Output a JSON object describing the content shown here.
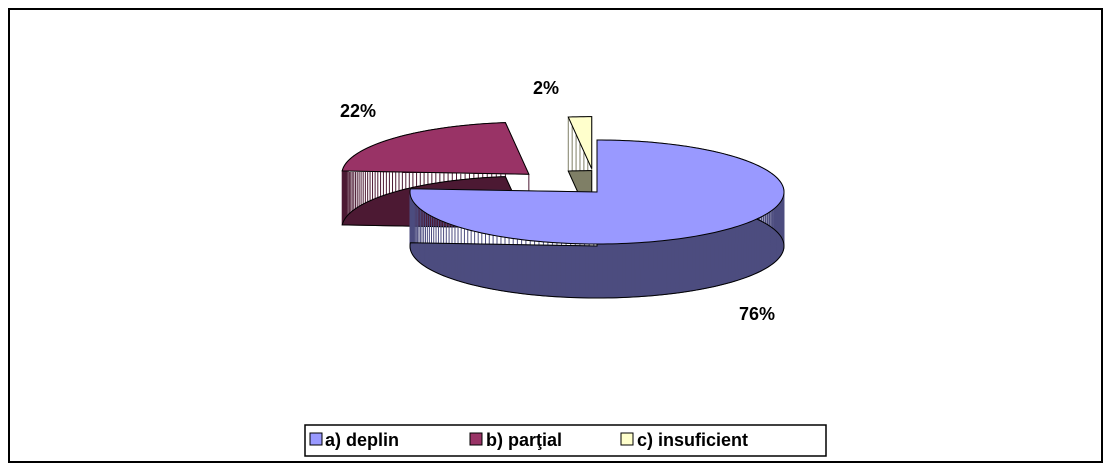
{
  "chart_data": {
    "type": "pie3d",
    "categories": [
      "a) deplin",
      "b) parţial",
      "c) insuficient"
    ],
    "values": [
      76,
      22,
      2
    ],
    "value_labels": [
      "76%",
      "22%",
      "2%"
    ],
    "colors": [
      "#9999ff",
      "#993366",
      "#ffffcc"
    ],
    "legend": "bottom"
  }
}
